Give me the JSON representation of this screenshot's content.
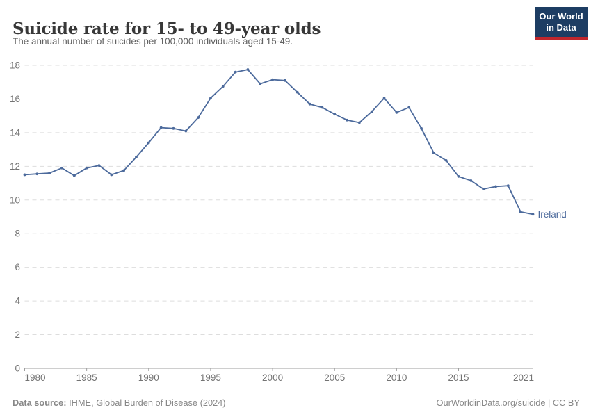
{
  "header": {
    "title": "Suicide rate for 15- to 49-year olds",
    "subtitle": "The annual number of suicides per 100,000 individuals aged 15-49."
  },
  "logo": {
    "name": "our-world-in-data-logo",
    "line1": "Our World",
    "line2": "in Data",
    "bg_color": "#1d3d63",
    "bar_color": "#c0262c"
  },
  "footer": {
    "datasource_label": "Data source:",
    "datasource_value": " IHME, Global Burden of Disease (2024)",
    "credit": "OurWorldinData.org/suicide | CC BY"
  },
  "chart_data": {
    "type": "line",
    "title": "Suicide rate for 15- to 49-year olds",
    "subtitle": "The annual number of suicides per 100,000 individuals aged 15-49.",
    "xlabel": "",
    "ylabel": "",
    "ylim": [
      0,
      18
    ],
    "yticks": [
      0,
      2,
      4,
      6,
      8,
      10,
      12,
      14,
      16,
      18
    ],
    "xticks": [
      1980,
      1985,
      1990,
      1995,
      2000,
      2005,
      2010,
      2015,
      2021
    ],
    "grid": "horizontal-dashed",
    "legend_position": "end-of-line-label",
    "axis_color": "#9e9e9e",
    "grid_color": "#dddddd",
    "tick_label_color": "#737373",
    "series": [
      {
        "name": "Ireland",
        "color": "#4c6a9c",
        "x": [
          1980,
          1981,
          1982,
          1983,
          1984,
          1985,
          1986,
          1987,
          1988,
          1989,
          1990,
          1991,
          1992,
          1993,
          1994,
          1995,
          1996,
          1997,
          1998,
          1999,
          2000,
          2001,
          2002,
          2003,
          2004,
          2005,
          2006,
          2007,
          2008,
          2009,
          2010,
          2011,
          2012,
          2013,
          2014,
          2015,
          2016,
          2017,
          2018,
          2019,
          2020,
          2021
        ],
        "values": [
          11.5,
          11.55,
          11.6,
          11.9,
          11.45,
          11.9,
          12.05,
          11.5,
          11.75,
          12.55,
          13.4,
          14.3,
          14.25,
          14.1,
          14.9,
          16.05,
          16.75,
          17.6,
          17.75,
          16.9,
          17.15,
          17.1,
          16.4,
          15.7,
          15.5,
          15.1,
          14.75,
          14.6,
          15.25,
          16.05,
          15.2,
          15.5,
          14.25,
          12.8,
          12.35,
          11.4,
          11.15,
          10.65,
          10.8,
          10.85,
          9.3,
          9.15
        ]
      }
    ],
    "end_label": "Ireland"
  }
}
